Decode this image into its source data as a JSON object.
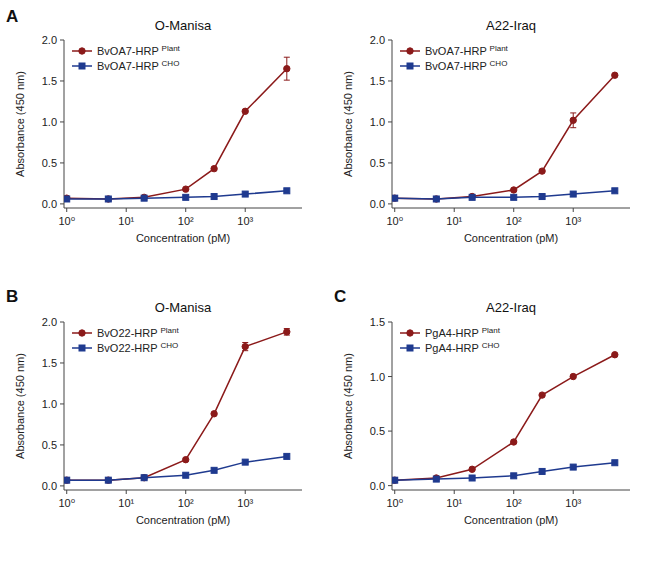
{
  "chart_data": [
    {
      "type": "line",
      "title": "O-Manisa",
      "x_label": "Concentration (pM)",
      "y_label": "Absorbance (450 nm)",
      "log": "x",
      "grid": false,
      "legend": "upper-left",
      "annotations": [
        "A"
      ],
      "xlim": [
        0.9,
        9000
      ],
      "xticks": [
        {
          "value": 1,
          "label": "10⁰"
        },
        {
          "value": 10,
          "label": "10¹"
        },
        {
          "value": 100,
          "label": "10²"
        },
        {
          "value": 1000,
          "label": "10³"
        }
      ],
      "ylim": [
        -0.05,
        2.0
      ],
      "yticks": [
        {
          "value": 0,
          "label": "0.0"
        },
        0.5,
        {
          "value": 1,
          "label": "1.0"
        },
        1.5,
        {
          "value": 2,
          "label": "2.0"
        }
      ],
      "x": [
        1,
        5,
        20,
        100,
        300,
        1000,
        5000
      ],
      "series": [
        {
          "name": "BvOA7-HRP Plant",
          "color": "#8B1A1A",
          "marker": "circle",
          "values": [
            0.07,
            0.06,
            0.08,
            0.18,
            0.43,
            1.13,
            1.65
          ],
          "errors": [
            0,
            0,
            0,
            0,
            0,
            0,
            0.14
          ]
        },
        {
          "name": "BvOA7-HRP CHO",
          "color": "#1F3A8F",
          "marker": "square",
          "values": [
            0.06,
            0.06,
            0.07,
            0.08,
            0.09,
            0.12,
            0.16
          ],
          "errors": [
            0,
            0,
            0,
            0,
            0,
            0,
            0
          ]
        }
      ]
    },
    {
      "type": "line",
      "title": "A22-Iraq",
      "x_label": "Concentration (pM)",
      "y_label": "Absorbance (450 nm)",
      "log": "x",
      "grid": false,
      "legend": "upper-left",
      "xlim": [
        0.9,
        9000
      ],
      "xticks": [
        {
          "value": 1,
          "label": "10⁰"
        },
        {
          "value": 10,
          "label": "10¹"
        },
        {
          "value": 100,
          "label": "10²"
        },
        {
          "value": 1000,
          "label": "10³"
        }
      ],
      "ylim": [
        -0.05,
        2.0
      ],
      "yticks": [
        {
          "value": 0,
          "label": "0.0"
        },
        0.5,
        {
          "value": 1,
          "label": "1.0"
        },
        1.5,
        {
          "value": 2,
          "label": "2.0"
        }
      ],
      "x": [
        1,
        5,
        20,
        100,
        300,
        1000,
        5000
      ],
      "series": [
        {
          "name": "BvOA7-HRP Plant",
          "color": "#8B1A1A",
          "marker": "circle",
          "values": [
            0.07,
            0.06,
            0.09,
            0.17,
            0.4,
            1.02,
            1.57
          ],
          "errors": [
            0,
            0,
            0,
            0,
            0,
            0.09,
            0
          ]
        },
        {
          "name": "BvOA7-HRP CHO",
          "color": "#1F3A8F",
          "marker": "square",
          "values": [
            0.07,
            0.06,
            0.08,
            0.08,
            0.09,
            0.12,
            0.16
          ],
          "errors": [
            0,
            0,
            0,
            0,
            0,
            0,
            0
          ]
        }
      ]
    },
    {
      "type": "line",
      "title": "O-Manisa",
      "x_label": "Concentration (pM)",
      "y_label": "Absorbance (450 nm)",
      "log": "x",
      "grid": false,
      "legend": "upper-left",
      "annotations": [
        "B"
      ],
      "xlim": [
        0.9,
        9000
      ],
      "xticks": [
        {
          "value": 1,
          "label": "10⁰"
        },
        {
          "value": 10,
          "label": "10¹"
        },
        {
          "value": 100,
          "label": "10²"
        },
        {
          "value": 1000,
          "label": "10³"
        }
      ],
      "ylim": [
        -0.05,
        2.0
      ],
      "yticks": [
        {
          "value": 0,
          "label": "0.0"
        },
        0.5,
        {
          "value": 1,
          "label": "1.0"
        },
        1.5,
        {
          "value": 2,
          "label": "2.0"
        }
      ],
      "x": [
        1,
        5,
        20,
        100,
        300,
        1000,
        5000
      ],
      "series": [
        {
          "name": "BvO22-HRP Plant",
          "color": "#8B1A1A",
          "marker": "circle",
          "values": [
            0.07,
            0.07,
            0.1,
            0.32,
            0.88,
            1.7,
            1.88
          ],
          "errors": [
            0,
            0,
            0,
            0,
            0,
            0.05,
            0.04
          ]
        },
        {
          "name": "BvO22-HRP CHO",
          "color": "#1F3A8F",
          "marker": "square",
          "values": [
            0.07,
            0.07,
            0.1,
            0.13,
            0.19,
            0.29,
            0.36
          ],
          "errors": [
            0,
            0,
            0,
            0,
            0,
            0,
            0
          ]
        }
      ]
    },
    {
      "type": "line",
      "title": "A22-Iraq",
      "x_label": "Concentration (pM)",
      "y_label": "Absorbance (450 nm)",
      "log": "x",
      "grid": false,
      "legend": "upper-left",
      "annotations": [
        "C"
      ],
      "xlim": [
        0.9,
        9000
      ],
      "xticks": [
        {
          "value": 1,
          "label": "10⁰"
        },
        {
          "value": 10,
          "label": "10¹"
        },
        {
          "value": 100,
          "label": "10²"
        },
        {
          "value": 1000,
          "label": "10³"
        }
      ],
      "ylim": [
        -0.04,
        1.5
      ],
      "yticks": [
        {
          "value": 0,
          "label": "0.0"
        },
        0.5,
        {
          "value": 1,
          "label": "1.0"
        },
        1.5
      ],
      "x": [
        1,
        5,
        20,
        100,
        300,
        1000,
        5000
      ],
      "series": [
        {
          "name": "PgA4-HRP Plant",
          "color": "#8B1A1A",
          "marker": "circle",
          "values": [
            0.05,
            0.07,
            0.15,
            0.4,
            0.83,
            1.0,
            1.2
          ],
          "errors": [
            0,
            0,
            0,
            0,
            0,
            0,
            0
          ]
        },
        {
          "name": "PgA4-HRP CHO",
          "color": "#1F3A8F",
          "marker": "square",
          "values": [
            0.05,
            0.06,
            0.07,
            0.09,
            0.13,
            0.17,
            0.21
          ],
          "errors": [
            0,
            0,
            0,
            0,
            0,
            0,
            0
          ]
        }
      ]
    }
  ]
}
